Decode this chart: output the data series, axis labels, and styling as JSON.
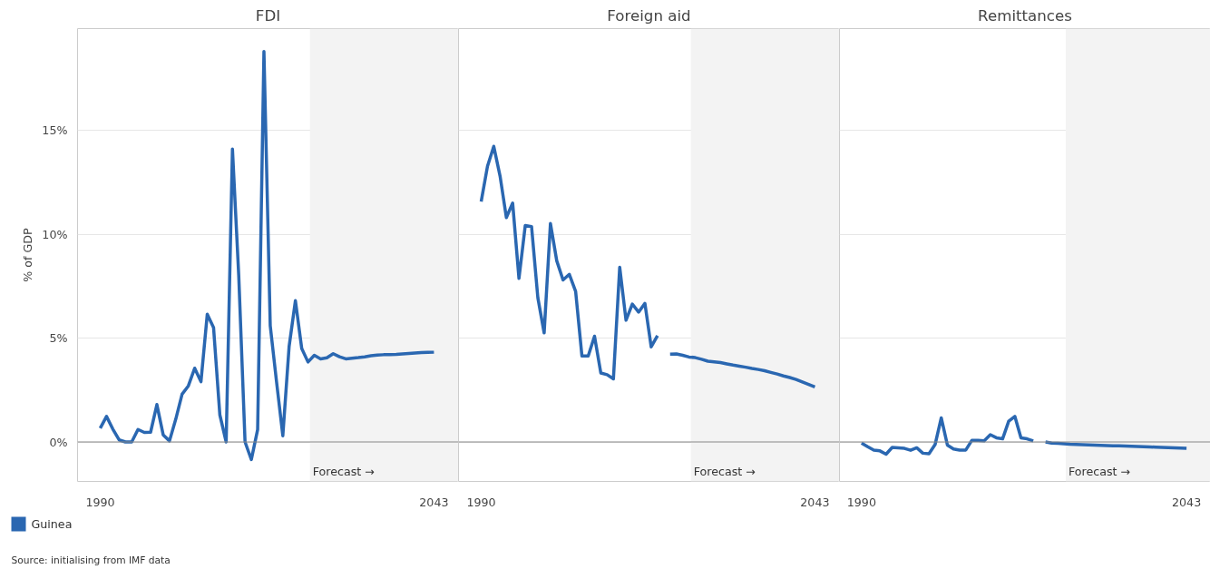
{
  "chart_data": [
    {
      "type": "line",
      "title": "FDI",
      "ylabel": "% of GDP",
      "x": [
        1990,
        1991,
        1992,
        1993,
        1994,
        1995,
        1996,
        1997,
        1998,
        1999,
        2000,
        2001,
        2002,
        2003,
        2004,
        2005,
        2006,
        2007,
        2008,
        2009,
        2010,
        2011,
        2012,
        2013,
        2014,
        2015,
        2016,
        2017,
        2018,
        2019,
        2020,
        2021,
        2022,
        2023,
        2024,
        2025,
        2026,
        2027,
        2028,
        2029,
        2030,
        2031,
        2032,
        2033,
        2034,
        2035,
        2036,
        2037,
        2038,
        2039,
        2040,
        2041,
        2042,
        2043
      ],
      "series": [
        {
          "name": "Guinea",
          "color": "#2a67b1",
          "values": [
            0.66,
            1.23,
            0.62,
            0.1,
            0.0,
            0.0,
            0.6,
            0.46,
            0.47,
            1.8,
            0.34,
            0.05,
            1.1,
            2.3,
            2.7,
            3.55,
            2.9,
            6.15,
            5.5,
            1.3,
            0.0,
            14.1,
            8.0,
            0.0,
            -0.85,
            0.6,
            18.8,
            5.6,
            2.9,
            0.3,
            4.6,
            6.8,
            4.5,
            3.85,
            4.17,
            4.0,
            4.05,
            4.25,
            4.1,
            4.0,
            4.03,
            4.06,
            4.1,
            4.15,
            4.18,
            4.2,
            4.21,
            4.22,
            4.24,
            4.26,
            4.28,
            4.3,
            4.31,
            4.32
          ]
        }
      ],
      "xlim": [
        1986.4,
        2046.9
      ],
      "xticks": [
        1990,
        2043
      ],
      "ylim": [
        -1.9,
        19.9
      ],
      "yticks": [
        {
          "value": 0,
          "label": "0%"
        },
        {
          "value": 5,
          "label": "5%"
        },
        {
          "value": 10,
          "label": "10%"
        },
        {
          "value": 15,
          "label": "15%"
        }
      ],
      "grid": "y",
      "legend": "bottom",
      "line_style": "solid",
      "ref_lines": [
        {
          "axis": "y",
          "value": 0,
          "color": "#888888"
        }
      ],
      "bands": [
        {
          "axis": "x",
          "from": 2023.3,
          "to": 2046.9,
          "label": "Forecast →",
          "color": "#f3f3f3"
        }
      ],
      "annotations": [
        "Source: initialising from IMF data"
      ]
    },
    {
      "type": "line",
      "title": "Foreign aid",
      "x": [
        1990,
        1991,
        1992,
        1993,
        1994,
        1995,
        1996,
        1997,
        1998,
        1999,
        2000,
        2001,
        2002,
        2003,
        2004,
        2005,
        2006,
        2007,
        2008,
        2009,
        2010,
        2011,
        2012,
        2013,
        2014,
        2015,
        2016,
        2017,
        2018,
        2019,
        2020,
        2021,
        2022,
        2023,
        2024,
        2025,
        2026,
        2027,
        2028,
        2029,
        2030,
        2031,
        2032,
        2033,
        2034,
        2035,
        2036,
        2037,
        2038,
        2039,
        2040,
        2041,
        2042,
        2043
      ],
      "series": [
        {
          "color": "#2a67b1",
          "values": [
            11.57,
            13.27,
            14.23,
            12.8,
            10.8,
            11.5,
            7.87,
            10.42,
            10.37,
            6.94,
            5.25,
            10.52,
            8.72,
            7.8,
            8.07,
            7.25,
            4.14,
            4.14,
            5.09,
            3.32,
            3.24,
            3.04,
            8.41,
            5.86,
            6.64,
            6.25,
            6.67,
            4.58,
            5.12,
            null,
            4.23,
            4.24,
            4.17,
            4.09,
            4.06,
            3.98,
            3.89,
            3.86,
            3.82,
            3.76,
            3.7,
            3.65,
            3.6,
            3.54,
            3.49,
            3.43,
            3.35,
            3.27,
            3.18,
            3.1,
            3.01,
            2.89,
            2.77,
            2.65
          ]
        }
      ],
      "xlim": [
        1986.4,
        2046.9
      ],
      "xticks": [
        1990,
        2043
      ],
      "ylim": [
        -1.9,
        19.9
      ],
      "yticks": [
        {
          "value": 0,
          "label": null
        },
        {
          "value": 5,
          "label": null
        },
        {
          "value": 10,
          "label": null
        },
        {
          "value": 15,
          "label": null
        }
      ],
      "tick_labels": "x",
      "grid": "y",
      "line_style": "solid",
      "ref_lines": [
        {
          "axis": "y",
          "value": 0,
          "color": "#888888"
        }
      ],
      "bands": [
        {
          "axis": "x",
          "from": 2023.3,
          "to": 2046.9,
          "label": "Forecast →",
          "color": "#f3f3f3"
        }
      ]
    },
    {
      "type": "line",
      "title": "Remittances",
      "x": [
        1990,
        1991,
        1992,
        1993,
        1994,
        1995,
        1996,
        1997,
        1998,
        1999,
        2000,
        2001,
        2002,
        2003,
        2004,
        2005,
        2006,
        2007,
        2008,
        2009,
        2010,
        2011,
        2012,
        2013,
        2014,
        2015,
        2016,
        2017,
        2018,
        2019,
        2020,
        2021,
        2022,
        2023,
        2024,
        2025,
        2026,
        2027,
        2028,
        2029,
        2030,
        2031,
        2032,
        2033,
        2034,
        2035,
        2036,
        2037,
        2038,
        2039,
        2040,
        2041,
        2042,
        2043
      ],
      "series": [
        {
          "color": "#2a67b1",
          "values": [
            -0.05,
            -0.23,
            -0.39,
            -0.43,
            -0.59,
            -0.26,
            -0.28,
            -0.31,
            -0.4,
            -0.28,
            -0.54,
            -0.57,
            -0.12,
            1.16,
            -0.15,
            -0.34,
            -0.39,
            -0.39,
            0.08,
            0.08,
            0.06,
            0.35,
            0.2,
            0.15,
            1.0,
            1.23,
            0.2,
            0.15,
            0.05,
            null,
            0.0,
            -0.05,
            -0.07,
            -0.09,
            -0.11,
            -0.12,
            -0.13,
            -0.14,
            -0.15,
            -0.16,
            -0.17,
            -0.18,
            -0.19,
            -0.2,
            -0.21,
            -0.22,
            -0.23,
            -0.24,
            -0.25,
            -0.26,
            -0.27,
            -0.28,
            -0.29,
            -0.3
          ]
        }
      ],
      "xlim": [
        1986.4,
        2046.9
      ],
      "xticks": [
        1990,
        2043
      ],
      "ylim": [
        -1.9,
        19.9
      ],
      "yticks": [
        {
          "value": 0,
          "label": null
        },
        {
          "value": 5,
          "label": null
        },
        {
          "value": 10,
          "label": null
        },
        {
          "value": 15,
          "label": null
        }
      ],
      "tick_labels": "x",
      "grid": "y",
      "line_style": "solid",
      "ref_lines": [
        {
          "axis": "y",
          "value": 0,
          "color": "#888888"
        }
      ],
      "bands": [
        {
          "axis": "x",
          "from": 2023.3,
          "to": 2046.9,
          "label": "Forecast →",
          "color": "#f3f3f3"
        }
      ]
    }
  ]
}
